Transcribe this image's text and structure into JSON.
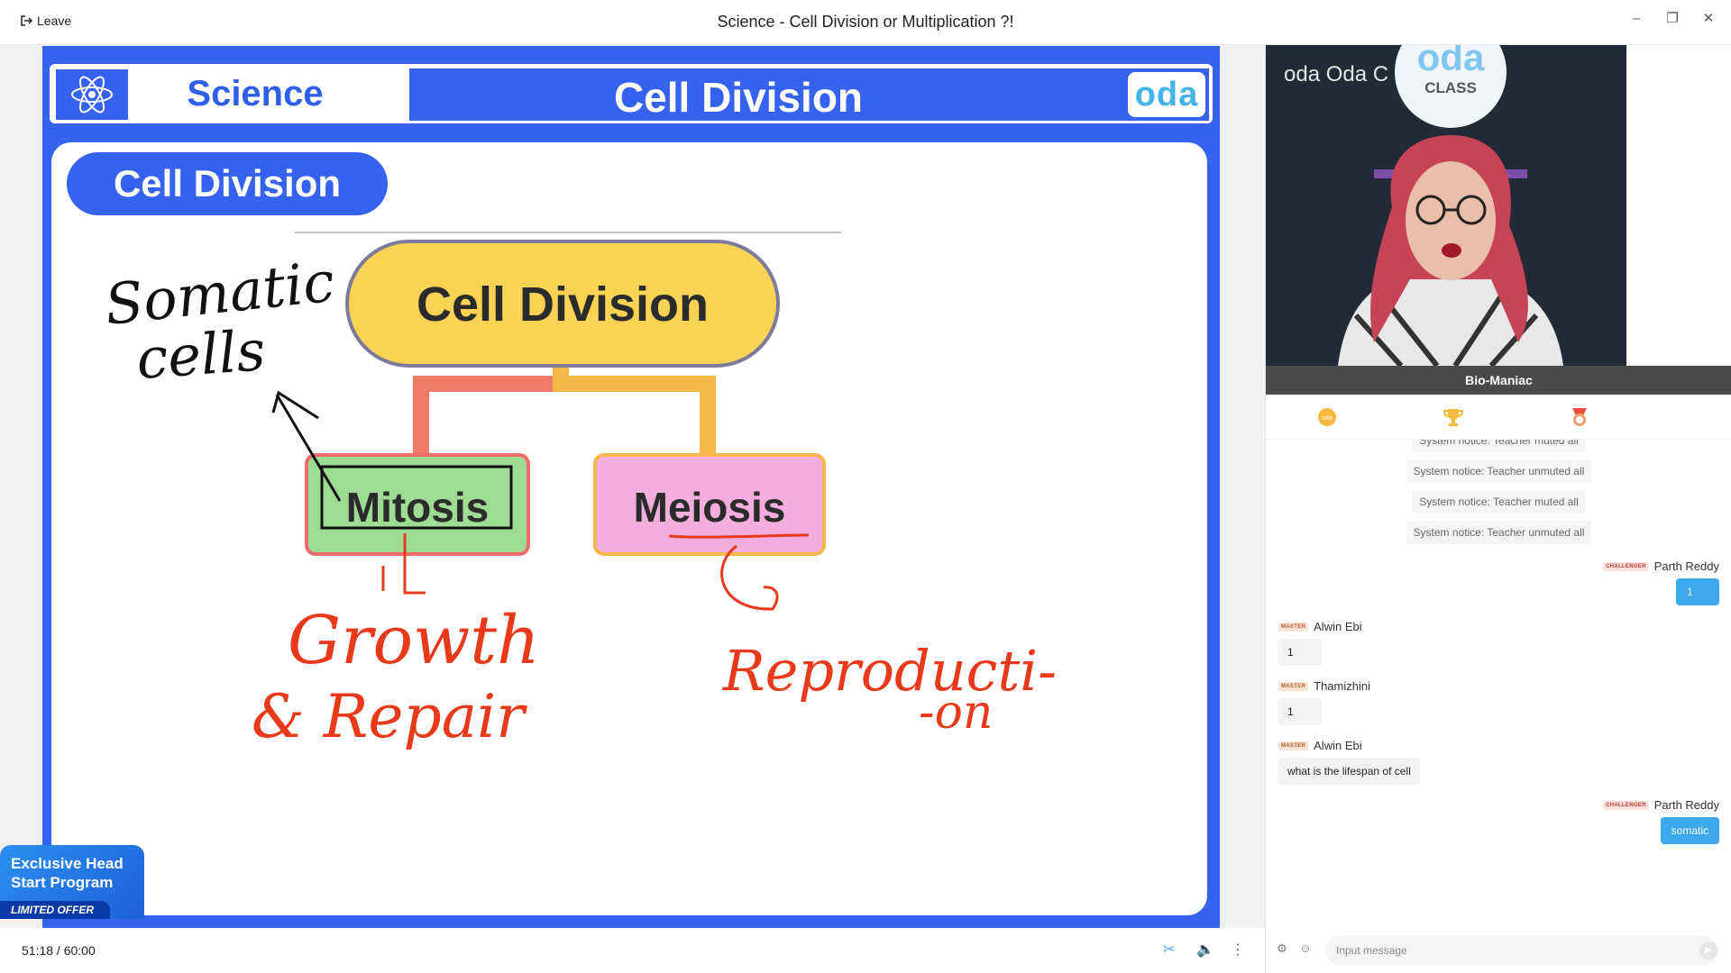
{
  "titlebar": {
    "leave_label": "Leave",
    "window_title": "Science - Cell Division or Multiplication ?!"
  },
  "slide": {
    "subject": "Science",
    "header_title": "Cell Division",
    "logo_text": "oda",
    "pill_title": "Cell Division",
    "diagram": {
      "root": "Cell Division",
      "left_child": "Mitosis",
      "right_child": "Meiosis"
    },
    "annotations": {
      "somatic": "Somatic",
      "cells": "cells",
      "growth": "Growth",
      "repair": "& Repair",
      "reproduction": "Reproducti-",
      "reproduction_tail": "-on"
    },
    "colors": {
      "slide_blue": "#3563f0",
      "root_fill": "#fbd354",
      "mitosis_fill": "#9edc94",
      "meiosis_fill": "#f4aede",
      "ink_red": "#e83a1a"
    }
  },
  "offer": {
    "line1": "Exclusive Head",
    "line2": "Start Program",
    "tag": "LIMITED OFFER"
  },
  "player": {
    "time": "51:18 / 60:00"
  },
  "video": {
    "name": "Bio-Maniac",
    "bg_brand": "oda Oda C",
    "bg_class": "CLASS",
    "bg_logo": "oda"
  },
  "chat": {
    "notices": [
      "System notice: Teacher muted all",
      "System notice: Teacher unmuted all",
      "System notice: Teacher muted all",
      "System notice: Teacher unmuted all"
    ],
    "messages": [
      {
        "side": "right",
        "badge": "CHALLENGER",
        "name": "Parth Reddy",
        "text": "1"
      },
      {
        "side": "left",
        "badge": "MASTER",
        "name": "Alwin Ebi",
        "text": "1"
      },
      {
        "side": "left",
        "badge": "MASTER",
        "name": "Thamizhini",
        "text": "1"
      },
      {
        "side": "left",
        "badge": "MASTER",
        "name": "Alwin Ebi",
        "text": "what is the lifespan of cell"
      },
      {
        "side": "right",
        "badge": "CHALLENGER",
        "name": "Parth Reddy",
        "text": "somatic"
      }
    ],
    "input_placeholder": "Input message"
  }
}
